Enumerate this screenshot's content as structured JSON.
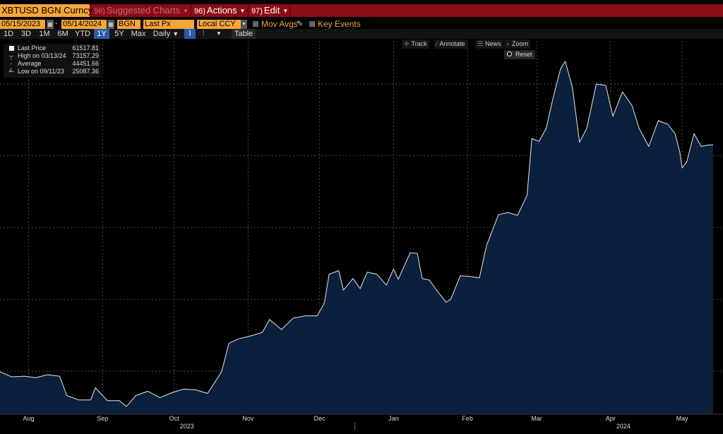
{
  "toolbar": {
    "ticker": "XBTUSD BGN Curncy",
    "suggested_num": "96)",
    "suggested_label": "Suggested Charts",
    "actions_num": "96)",
    "actions_label": "Actions",
    "edit_num": "97)",
    "edit_label": "Edit"
  },
  "controls": {
    "start_date": "05/15/2023",
    "end_date": "05/14/2024",
    "source": "BGN",
    "field": "Last Px",
    "currency": "Local CCY",
    "mov_avgs": "Mov Avgs",
    "key_events": "Key Events",
    "dash": "-"
  },
  "timeframes": [
    "1D",
    "3D",
    "1M",
    "6M",
    "YTD",
    "1Y",
    "5Y",
    "Max"
  ],
  "active_timeframe": "1Y",
  "periodicity": "Daily",
  "table_label": "Table",
  "legend": {
    "last_label": "Last Price",
    "last_value": "61517.81",
    "high_label": "High on 03/13/24",
    "high_value": "73157.29",
    "avg_label": "Average",
    "avg_value": "44451.66",
    "low_label": "Low on 09/11/23",
    "low_value": "25087.36"
  },
  "tools": {
    "track": "Track",
    "annotate": "Annotate",
    "news": "News",
    "zoom": "Zoom",
    "reset": "Reset"
  },
  "colors": {
    "area_fill": "#0b2240",
    "line": "#e8e8e8",
    "grid": "#5a5a5a",
    "orange": "#f5a53a",
    "toolbar_red": "#8a0d18"
  },
  "chart_data": {
    "type": "area",
    "title": "",
    "xlabel": "",
    "ylabel": "",
    "x_range": [
      "2023-07-20",
      "2024-05-14"
    ],
    "y_range": [
      24000,
      76000
    ],
    "x_ticks": [
      "Aug",
      "Sep",
      "Oct",
      "Nov",
      "Dec",
      "Jan",
      "Feb",
      "Mar",
      "Apr",
      "May"
    ],
    "x_tick_dates": [
      "2023-08-01",
      "2023-09-01",
      "2023-10-01",
      "2023-11-01",
      "2023-12-01",
      "2024-01-01",
      "2024-02-01",
      "2024-03-01",
      "2024-04-01",
      "2024-05-01"
    ],
    "year_labels": [
      {
        "label": "2023",
        "date": "2023-10-01"
      },
      {
        "label": "2024",
        "date": "2024-04-01"
      }
    ],
    "year_separator_date": "2024-01-01",
    "grid": true,
    "legend": "top-left",
    "series": [
      {
        "values": [
          [
            "2023-07-20",
            29900
          ],
          [
            "2023-07-25",
            29200
          ],
          [
            "2023-07-30",
            29300
          ],
          [
            "2023-08-04",
            29100
          ],
          [
            "2023-08-09",
            29500
          ],
          [
            "2023-08-14",
            29300
          ],
          [
            "2023-08-17",
            26600
          ],
          [
            "2023-08-22",
            26000
          ],
          [
            "2023-08-27",
            26000
          ],
          [
            "2023-08-29",
            27700
          ],
          [
            "2023-09-03",
            25900
          ],
          [
            "2023-09-08",
            25900
          ],
          [
            "2023-09-11",
            25087
          ],
          [
            "2023-09-15",
            26600
          ],
          [
            "2023-09-20",
            27200
          ],
          [
            "2023-09-25",
            26300
          ],
          [
            "2023-09-30",
            27000
          ],
          [
            "2023-10-05",
            27500
          ],
          [
            "2023-10-10",
            27400
          ],
          [
            "2023-10-15",
            26900
          ],
          [
            "2023-10-18",
            28400
          ],
          [
            "2023-10-21",
            30000
          ],
          [
            "2023-10-24",
            33900
          ],
          [
            "2023-10-28",
            34500
          ],
          [
            "2023-11-02",
            34900
          ],
          [
            "2023-11-07",
            35400
          ],
          [
            "2023-11-10",
            37200
          ],
          [
            "2023-11-15",
            35800
          ],
          [
            "2023-11-20",
            37400
          ],
          [
            "2023-11-25",
            37700
          ],
          [
            "2023-11-30",
            37700
          ],
          [
            "2023-12-03",
            39500
          ],
          [
            "2023-12-05",
            43500
          ],
          [
            "2023-12-09",
            44000
          ],
          [
            "2023-12-11",
            41300
          ],
          [
            "2023-12-15",
            42900
          ],
          [
            "2023-12-18",
            41500
          ],
          [
            "2023-12-21",
            43800
          ],
          [
            "2023-12-25",
            43500
          ],
          [
            "2023-12-29",
            42000
          ],
          [
            "2024-01-01",
            44200
          ],
          [
            "2024-01-03",
            42800
          ],
          [
            "2024-01-08",
            46500
          ],
          [
            "2024-01-11",
            46400
          ],
          [
            "2024-01-13",
            42900
          ],
          [
            "2024-01-16",
            42700
          ],
          [
            "2024-01-19",
            41300
          ],
          [
            "2024-01-23",
            39600
          ],
          [
            "2024-01-25",
            40000
          ],
          [
            "2024-01-29",
            43300
          ],
          [
            "2024-02-02",
            43200
          ],
          [
            "2024-02-06",
            43000
          ],
          [
            "2024-02-09",
            47500
          ],
          [
            "2024-02-14",
            51800
          ],
          [
            "2024-02-18",
            52100
          ],
          [
            "2024-02-22",
            51700
          ],
          [
            "2024-02-26",
            54500
          ],
          [
            "2024-02-28",
            62400
          ],
          [
            "2024-03-02",
            62000
          ],
          [
            "2024-03-05",
            63800
          ],
          [
            "2024-03-08",
            68200
          ],
          [
            "2024-03-11",
            72100
          ],
          [
            "2024-03-13",
            73157
          ],
          [
            "2024-03-16",
            69500
          ],
          [
            "2024-03-19",
            61900
          ],
          [
            "2024-03-22",
            63800
          ],
          [
            "2024-03-26",
            70000
          ],
          [
            "2024-03-30",
            69800
          ],
          [
            "2024-04-02",
            65500
          ],
          [
            "2024-04-06",
            68900
          ],
          [
            "2024-04-10",
            67000
          ],
          [
            "2024-04-13",
            63800
          ],
          [
            "2024-04-17",
            61300
          ],
          [
            "2024-04-21",
            64900
          ],
          [
            "2024-04-25",
            64400
          ],
          [
            "2024-04-28",
            63100
          ],
          [
            "2024-04-30",
            60600
          ],
          [
            "2024-05-01",
            58300
          ],
          [
            "2024-05-03",
            59200
          ],
          [
            "2024-05-06",
            63100
          ],
          [
            "2024-05-09",
            61300
          ],
          [
            "2024-05-12",
            61500
          ],
          [
            "2024-05-14",
            61517
          ]
        ]
      }
    ]
  }
}
